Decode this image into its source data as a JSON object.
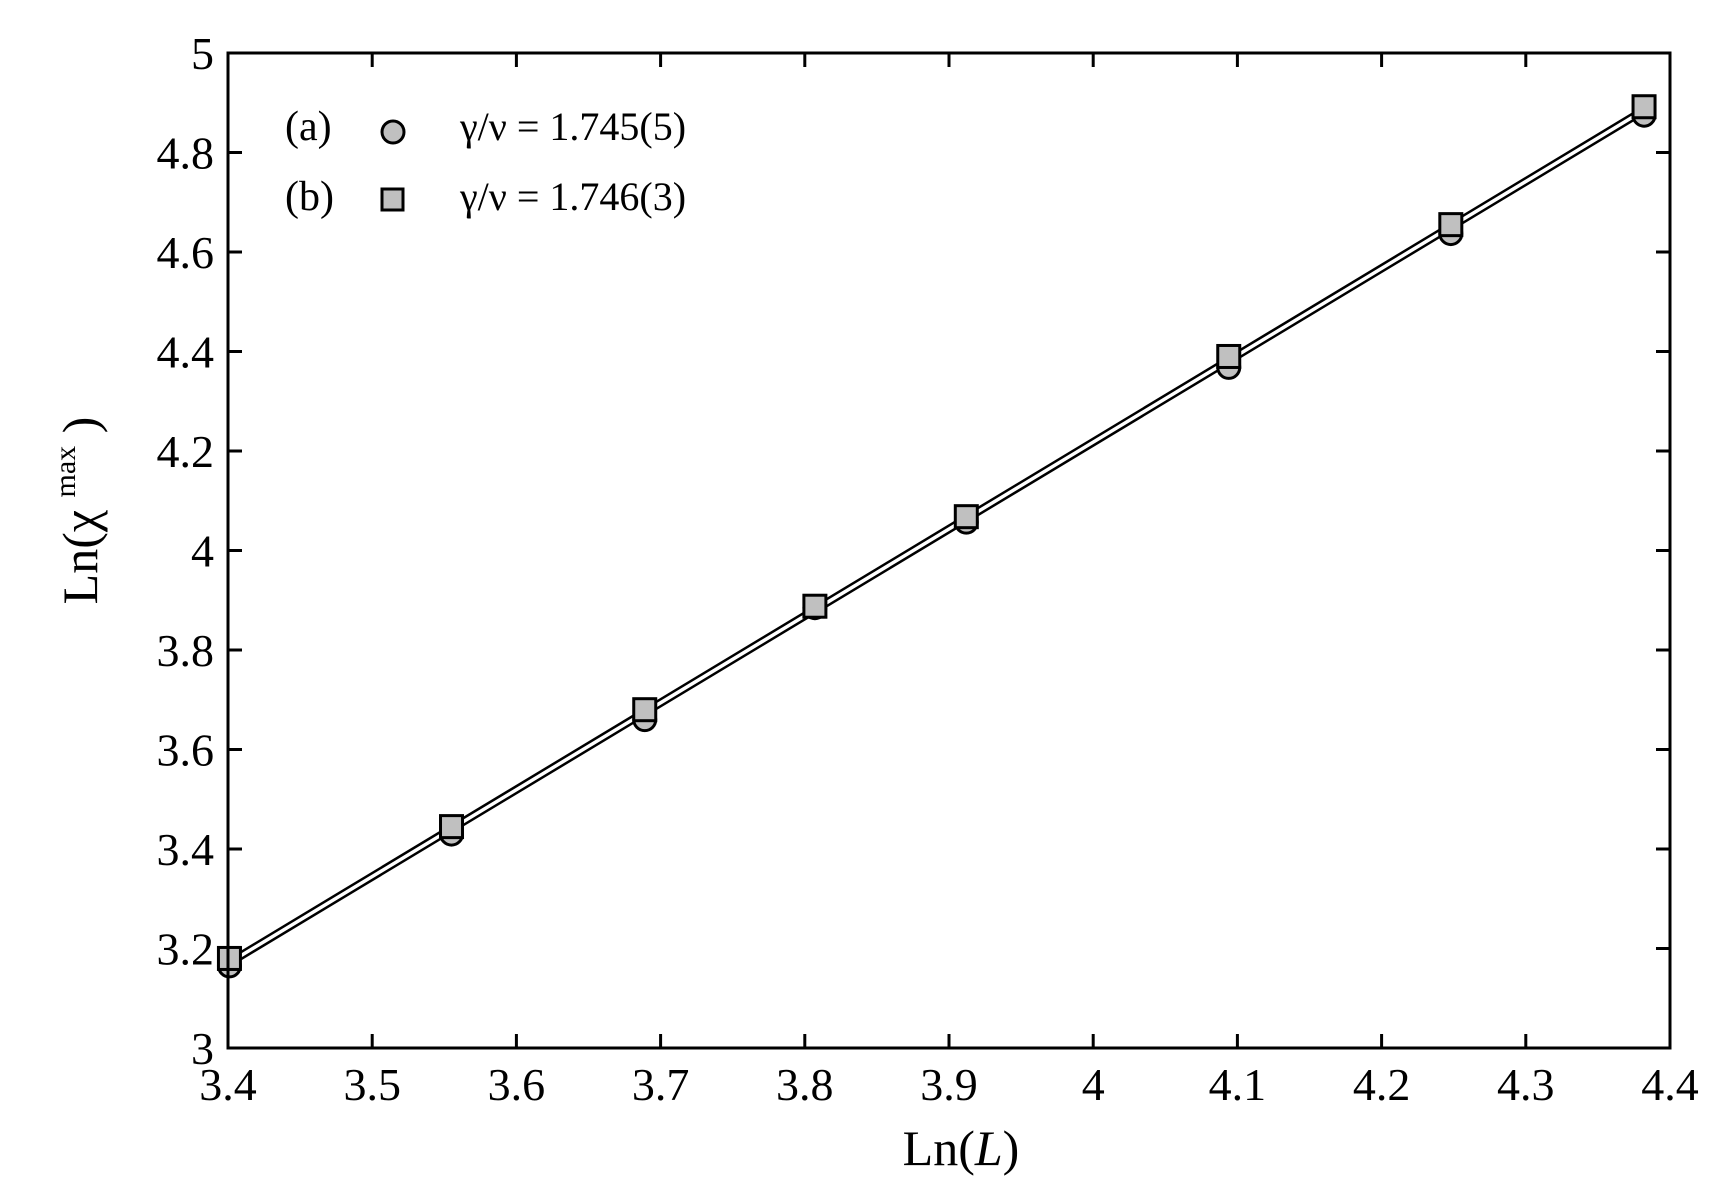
{
  "chart_data": {
    "type": "scatter",
    "xlabel": {
      "prefix": "Ln(",
      "var": "L",
      "suffix": ")"
    },
    "ylabel": {
      "prefix": "Ln(χ ",
      "sup": "max",
      "suffix": " )"
    },
    "xlim": [
      3.4,
      4.4
    ],
    "ylim": [
      3.0,
      5.0
    ],
    "x_ticks": [
      "3.4",
      "3.5",
      "3.6",
      "3.7",
      "3.8",
      "3.9",
      "4",
      "4.1",
      "4.2",
      "4.3",
      "4.4"
    ],
    "y_ticks": [
      "3",
      "3.2",
      "3.4",
      "3.6",
      "3.8",
      "4",
      "4.2",
      "4.4",
      "4.6",
      "4.8",
      "5"
    ],
    "legend_position": "top-left",
    "series": [
      {
        "id": "(a)",
        "name": "γ/ν = 1.745(5)",
        "marker": "circle",
        "color": "#c0c0c0",
        "x": [
          3.401,
          3.555,
          3.689,
          3.807,
          3.912,
          4.094,
          4.248,
          4.382
        ],
        "y": [
          3.165,
          3.43,
          3.66,
          3.885,
          4.057,
          4.368,
          4.637,
          4.875
        ],
        "fit": {
          "x": [
            3.4,
            4.382
          ],
          "y": [
            3.163,
            4.878
          ]
        }
      },
      {
        "id": "(b)",
        "name": "γ/ν = 1.746(3)",
        "marker": "square",
        "color": "#c0c0c0",
        "x": [
          3.401,
          3.555,
          3.689,
          3.807,
          3.912,
          4.094,
          4.248,
          4.382
        ],
        "y": [
          3.18,
          3.445,
          3.68,
          3.888,
          4.068,
          4.39,
          4.655,
          4.892
        ],
        "fit": {
          "x": [
            3.4,
            4.382
          ],
          "y": [
            3.177,
            4.892
          ]
        }
      }
    ]
  }
}
